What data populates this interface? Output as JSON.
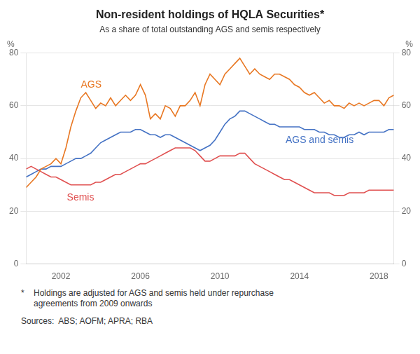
{
  "chart_data": {
    "type": "line",
    "title": "Non-resident holdings of HQLA Securities*",
    "subtitle": "As a share of total outstanding AGS and semis respectively",
    "y_label": "%",
    "y2_label": "%",
    "footnote_mark": "*",
    "footnote": "Holdings are adjusted for AGS and semis held under repurchase\nagreements from 2009 onwards",
    "source": "Sources:  ABS; AOFM; APRA; RBA",
    "xlim": [
      2000.25,
      2018.75
    ],
    "xticks": [
      2002,
      2006,
      2010,
      2014,
      2018
    ],
    "ylim": [
      0,
      80
    ],
    "yticks": [
      0,
      20,
      40,
      60,
      80
    ],
    "y2lim": [
      0,
      80
    ],
    "y2ticks": [
      0,
      20,
      40,
      60,
      80
    ],
    "grid": "y",
    "x": [
      2000.25,
      2000.5,
      2000.75,
      2001.0,
      2001.25,
      2001.5,
      2001.75,
      2002.0,
      2002.25,
      2002.5,
      2002.75,
      2003.0,
      2003.25,
      2003.5,
      2003.75,
      2004.0,
      2004.25,
      2004.5,
      2004.75,
      2005.0,
      2005.25,
      2005.5,
      2005.75,
      2006.0,
      2006.25,
      2006.5,
      2006.75,
      2007.0,
      2007.25,
      2007.5,
      2007.75,
      2008.0,
      2008.25,
      2008.5,
      2008.75,
      2009.0,
      2009.25,
      2009.5,
      2009.75,
      2010.0,
      2010.25,
      2010.5,
      2010.75,
      2011.0,
      2011.25,
      2011.5,
      2011.75,
      2012.0,
      2012.25,
      2012.5,
      2012.75,
      2013.0,
      2013.25,
      2013.5,
      2013.75,
      2014.0,
      2014.25,
      2014.5,
      2014.75,
      2015.0,
      2015.25,
      2015.5,
      2015.75,
      2016.0,
      2016.25,
      2016.5,
      2016.75,
      2017.0,
      2017.25,
      2017.5,
      2017.75,
      2018.0,
      2018.25,
      2018.5,
      2018.75
    ],
    "series": [
      {
        "name": "AGS",
        "color": "#E87722",
        "label_x": 2003.0,
        "label_y": 67,
        "values": [
          29,
          31,
          33,
          36,
          37,
          38,
          40,
          38,
          44,
          52,
          58,
          63,
          65,
          62,
          59,
          61,
          60,
          63,
          60,
          62,
          64,
          62,
          64,
          68,
          64,
          55,
          57,
          55,
          60,
          59,
          56,
          60,
          60,
          62,
          65,
          60,
          68,
          72,
          70,
          68,
          72,
          74,
          76,
          78,
          75,
          72,
          74,
          72,
          71,
          70,
          72,
          72,
          71,
          70,
          68,
          67,
          65,
          64,
          65,
          63,
          61,
          62,
          60,
          60,
          59,
          61,
          60,
          61,
          60,
          61,
          62,
          62,
          60,
          63,
          64
        ]
      },
      {
        "name": "Semis",
        "color": "#E05050",
        "label_x": 2002.3,
        "label_y": 24,
        "values": [
          36,
          37,
          36,
          35,
          34,
          33,
          33,
          32,
          31,
          30,
          30,
          30,
          30,
          30,
          31,
          31,
          32,
          33,
          34,
          34,
          35,
          36,
          37,
          38,
          38,
          39,
          40,
          41,
          42,
          43,
          44,
          44,
          44,
          44,
          43,
          41,
          39,
          39,
          40,
          41,
          41,
          41,
          41,
          42,
          42,
          40,
          38,
          37,
          36,
          35,
          34,
          33,
          32,
          32,
          31,
          30,
          29,
          28,
          27,
          27,
          27,
          27,
          26,
          26,
          26,
          27,
          27,
          27,
          27,
          28,
          28,
          28,
          28,
          28,
          28
        ]
      },
      {
        "name": "AGS and semis",
        "color": "#4472C4",
        "label_x": 2013.3,
        "label_y": 46,
        "values": [
          33,
          34,
          35,
          36,
          36,
          37,
          37,
          37,
          38,
          39,
          40,
          40,
          41,
          42,
          44,
          46,
          47,
          48,
          49,
          50,
          50,
          50,
          51,
          51,
          50,
          49,
          49,
          48,
          49,
          49,
          48,
          47,
          46,
          45,
          44,
          43,
          44,
          45,
          47,
          50,
          53,
          55,
          56,
          58,
          58,
          57,
          56,
          55,
          54,
          53,
          53,
          52,
          52,
          52,
          52,
          52,
          51,
          51,
          51,
          50,
          50,
          49,
          49,
          48,
          48,
          49,
          49,
          50,
          49,
          50,
          50,
          50,
          50,
          51,
          51
        ]
      }
    ]
  }
}
